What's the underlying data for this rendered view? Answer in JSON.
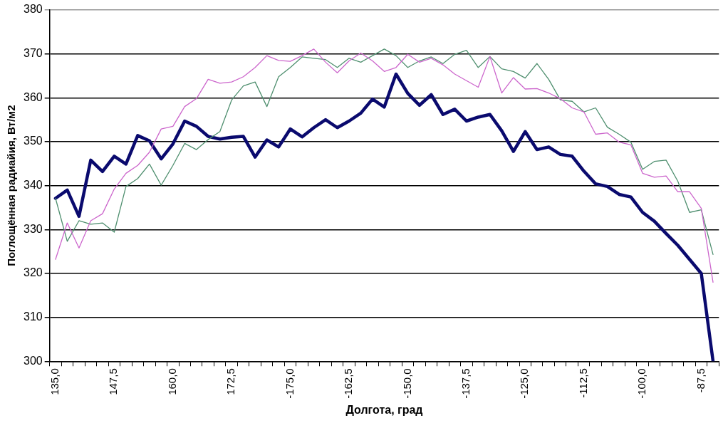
{
  "chart_data": {
    "type": "line",
    "xlabel": "Долгота, град",
    "ylabel": "Поглощённая радиайия, Вт/м2",
    "categories": [
      "135,0",
      null,
      null,
      null,
      null,
      "147,5",
      null,
      null,
      null,
      null,
      "160,0",
      null,
      null,
      null,
      null,
      "172,5",
      null,
      null,
      null,
      null,
      "-175,0",
      null,
      null,
      null,
      null,
      "-162,5",
      null,
      null,
      null,
      null,
      "-150,0",
      null,
      null,
      null,
      null,
      "-137,5",
      null,
      null,
      null,
      null,
      "-125,0",
      null,
      null,
      null,
      null,
      "-112,5",
      null,
      null,
      null,
      null,
      "-100,0",
      null,
      null,
      null,
      null,
      "-87,5",
      null
    ],
    "ylim": [
      300,
      380
    ],
    "yticks": [
      300,
      310,
      320,
      330,
      340,
      350,
      360,
      370,
      380
    ],
    "grid": "y",
    "legend": false,
    "marker": "none",
    "line_style": "solid",
    "series": [
      {
        "color": "#cc66cc",
        "values": [
          323.2,
          331.5,
          325.8,
          332,
          333.6,
          339.2,
          342.8,
          344.6,
          347.6,
          352.9,
          353.5,
          358,
          359.8,
          364.2,
          363.3,
          363.6,
          364.8,
          366.9,
          369.6,
          368.5,
          368.3,
          369.6,
          371.1,
          368.1,
          365.7,
          368.4,
          370.2,
          368.4,
          366,
          366.9,
          369.9,
          368.1,
          369,
          367.5,
          365.4,
          363.9,
          362.4,
          369.4,
          361.1,
          364.6,
          362,
          362.1,
          361.1,
          359.8,
          357.7,
          356.8,
          351.7,
          352,
          349.9,
          349.3,
          342.8,
          341.9,
          342.2,
          338.6,
          338.6,
          334.8,
          318
        ]
      },
      {
        "color": "#4f8f6f",
        "values": [
          337.1,
          327.3,
          332,
          331.2,
          331.5,
          329.4,
          339.8,
          341.6,
          344.9,
          340.1,
          344.6,
          349.6,
          348.2,
          350.5,
          352.3,
          359.5,
          362.7,
          363.6,
          358,
          364.8,
          366.9,
          369.3,
          369,
          368.7,
          366.9,
          369,
          368.1,
          369.6,
          371.1,
          369.6,
          366.9,
          368.4,
          369.3,
          367.8,
          369.9,
          370.8,
          366.9,
          369.4,
          366.6,
          366,
          364.5,
          367.8,
          364.2,
          359.5,
          359.2,
          356.8,
          357.7,
          353.3,
          351.7,
          349.9,
          343.7,
          345.5,
          345.8,
          341,
          333.9,
          334.5,
          324.3
        ]
      },
      {
        "color": "#0a0a6e",
        "values": [
          337.1,
          339,
          333,
          345.8,
          343.2,
          346.7,
          344.9,
          351.4,
          350.2,
          346.1,
          349.5,
          354.7,
          353.5,
          351.2,
          350.6,
          351,
          351.2,
          346.5,
          350.4,
          348.8,
          352.9,
          351.1,
          353.2,
          355,
          353.2,
          354.7,
          356.5,
          359.7,
          357.9,
          365.4,
          361,
          358.3,
          360.7,
          356.2,
          357.4,
          354.7,
          355.6,
          356.2,
          352.5,
          347.8,
          352.3,
          348.2,
          348.8,
          347.1,
          346.7,
          343.3,
          340.4,
          339.8,
          338,
          337.4,
          333.9,
          331.9,
          329.1,
          326.4,
          323.2,
          320,
          300
        ]
      }
    ]
  }
}
